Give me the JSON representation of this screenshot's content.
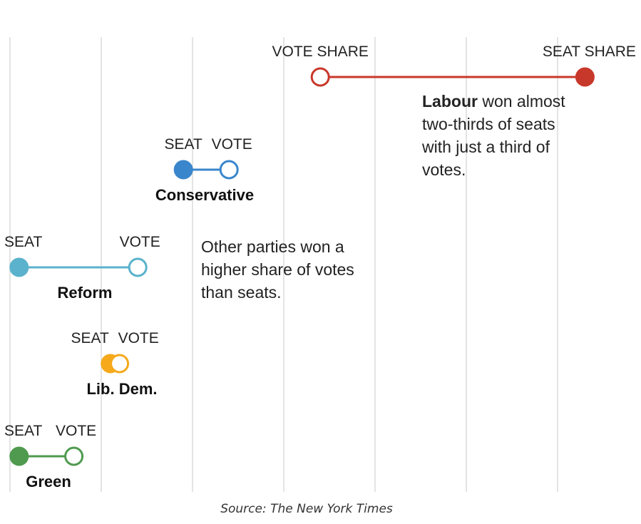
{
  "chart_data": {
    "type": "dumbbell",
    "x_label": "",
    "grid": true,
    "series": [
      {
        "name": "Labour",
        "seat": 63,
        "vote": 34,
        "color": "#c8382a",
        "labels": {
          "vote": "VOTE SHARE",
          "seat": "SEAT SHARE"
        }
      },
      {
        "name": "Conservative",
        "seat": 19,
        "vote": 24,
        "color": "#3a86cc",
        "labels": {
          "seat": "SEAT",
          "vote": "VOTE"
        }
      },
      {
        "name": "Reform",
        "seat": 1,
        "vote": 14,
        "color": "#5ab2cc",
        "labels": {
          "seat": "SEAT",
          "vote": "VOTE"
        }
      },
      {
        "name": "Lib. Dem.",
        "seat": 11,
        "vote": 12,
        "color": "#f5a91b",
        "labels": {
          "seat": "SEAT",
          "vote": "VOTE"
        }
      },
      {
        "name": "Green",
        "seat": 1,
        "vote": 7,
        "color": "#4f9a4f",
        "labels": {
          "seat": "SEAT",
          "vote": "VOTE"
        }
      }
    ]
  },
  "annotations": {
    "labour_bold": "Labour",
    "labour_lines": [
      " won almost",
      "two-thirds of seats",
      "with just a third of",
      "votes."
    ],
    "others_lines": [
      "Other parties won a",
      "higher share of votes",
      "than seats."
    ]
  },
  "source": "Source: The New York Times"
}
